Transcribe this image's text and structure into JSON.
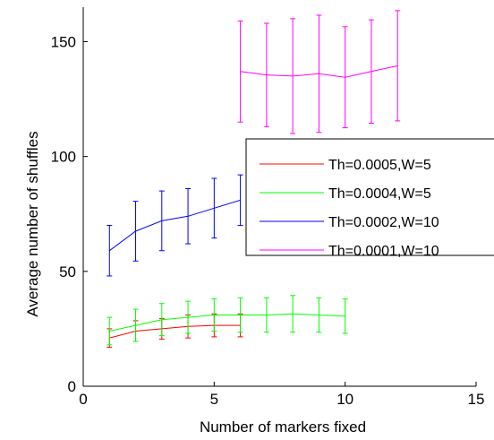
{
  "chart_data": {
    "type": "line",
    "title": "",
    "xlabel": "Number of markers fixed",
    "ylabel": "Average number of shuffles",
    "xlim": [
      0,
      15
    ],
    "ylim": [
      0,
      165
    ],
    "xticks": [
      0,
      5,
      10,
      15
    ],
    "yticks": [
      0,
      50,
      100,
      150
    ],
    "grid": false,
    "error_bars": true,
    "legend_position": "right, overlapping plot edge",
    "series": [
      {
        "name": "Th=0.0005,W=5",
        "color": "#ff0000",
        "x": [
          1,
          2,
          3,
          4,
          5,
          6
        ],
        "y": [
          21,
          24,
          25,
          26,
          26.5,
          26.5
        ],
        "err": [
          4,
          4.5,
          4.5,
          5,
          5,
          5
        ]
      },
      {
        "name": "Th=0.0004,W=5",
        "color": "#00ff00",
        "x": [
          1,
          2,
          3,
          4,
          5,
          6,
          7,
          8,
          9,
          10
        ],
        "y": [
          24,
          26.5,
          29,
          30,
          31,
          31,
          31,
          31.5,
          31,
          30.5
        ],
        "err": [
          6,
          7,
          7,
          7,
          7,
          7.5,
          7.5,
          8,
          7.5,
          7.5
        ]
      },
      {
        "name": "Th=0.0002,W=10",
        "color": "#0000ff",
        "x": [
          1,
          2,
          3,
          4,
          5,
          6
        ],
        "y": [
          59,
          67.5,
          72,
          74,
          77.5,
          81
        ],
        "err": [
          11,
          13,
          13,
          12,
          13,
          11
        ]
      },
      {
        "name": "Th=0.0001,W=10",
        "color": "#ff00ff",
        "x": [
          6,
          7,
          8,
          9,
          10,
          11,
          12
        ],
        "y": [
          137,
          135.5,
          135,
          136,
          134.5,
          137,
          139.5
        ],
        "err": [
          22,
          22.5,
          25,
          25.5,
          22,
          22.5,
          24
        ]
      }
    ]
  }
}
